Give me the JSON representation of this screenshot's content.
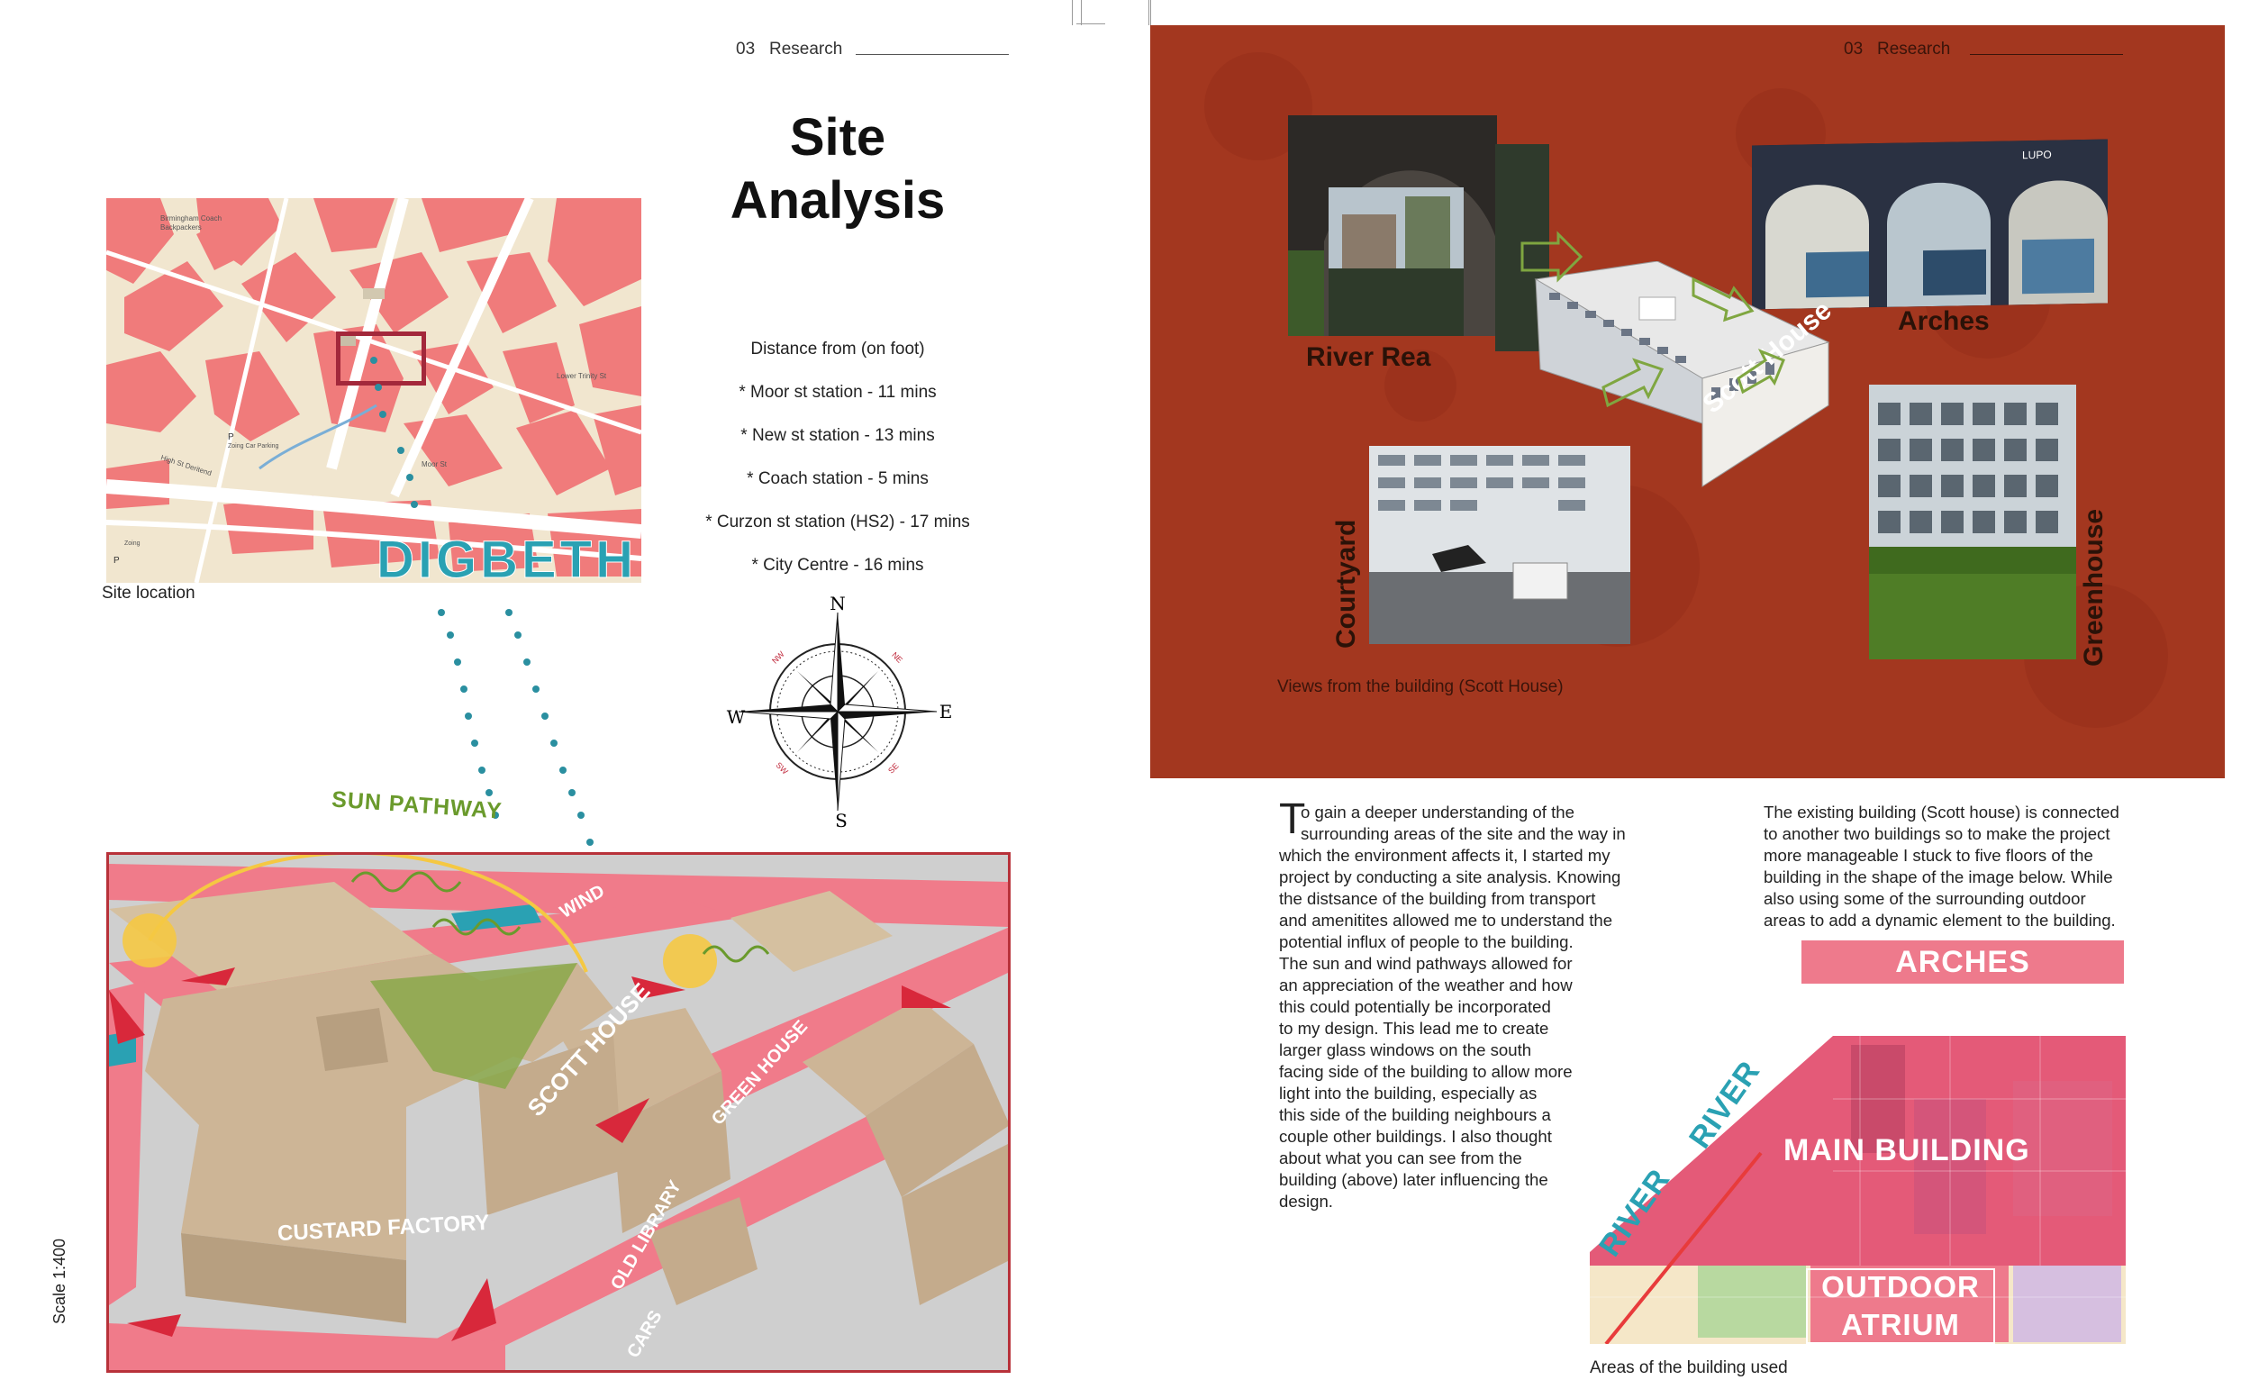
{
  "left_page": {
    "header": {
      "number": "03",
      "section": "Research"
    },
    "title_line1": "Site",
    "title_line2": "Analysis",
    "distance_heading": "Distance from (on foot)",
    "distances": [
      "* Moor st station - 11 mins",
      "* New st station - 13 mins",
      "* Coach station - 5 mins",
      "* Curzon st station (HS2) - 17 mins",
      "* City Centre - 16 mins"
    ],
    "map": {
      "district_label": "DIGBETH",
      "caption": "Site location",
      "small_labels": [
        "Birmingham Coach Backpackers",
        "Zoing Car Parking",
        "High St Deritend",
        "Moor St",
        "Lower Trinity St"
      ]
    },
    "compass": {
      "north": "N",
      "south": "S",
      "east": "E",
      "west": "W",
      "nw": "NW",
      "ne": "NE",
      "sw": "SW",
      "se": "SE"
    },
    "axo": {
      "sun_label": "SUN PATHWAY",
      "labels": [
        "WIND",
        "SCOTT HOUSE",
        "GREEN HOUSE",
        "CUSTARD FACTORY",
        "OLD LIBRARY",
        "CARS"
      ],
      "scale": "Scale 1:400"
    }
  },
  "right_page": {
    "header": {
      "number": "03",
      "section": "Research"
    },
    "photos": {
      "river": "River Rea",
      "arches": "Arches",
      "scott": "Scott House",
      "courtyard": "Courtyard",
      "greenhouse": "Greenhouse",
      "arches_sign": "LUPO"
    },
    "photos_caption": "Views from the building (Scott House)",
    "para1_dropcap": "T",
    "para1_first": "o gain a deeper understanding of the",
    "para1_lines": [
      "surrounding areas of the site and the way in",
      "which the  environment affects it, I started my",
      "project by conducting a site analysis. Knowing",
      "the distsance of the building from transport",
      "and amenitites allowed me to understand the",
      "potential influx of people to the building.",
      "The sun and wind pathways allowed for",
      "an appreciation of the weather and how",
      "this could potentially be incorporated",
      "to my design. This lead me to create",
      "larger glass windows on the south",
      "facing side of the building to allow more",
      "light into the building, especially as",
      "this side of the building neighbours a",
      "couple other buildings. I also thought",
      "about what you can see from the",
      "building (above) later influencing the",
      "design."
    ],
    "para2_lines": [
      "The existing building (Scott house) is connected",
      "to another two buildings so to make the project",
      "more manageable I stuck to five floors of the",
      "building in the shape of the image below. While",
      "also using some of the surrounding outdoor",
      "areas to add a dynamic element to the building."
    ],
    "plan": {
      "arches": "ARCHES",
      "main": "MAIN BUILDING",
      "outdoor1": "OUTDOOR",
      "outdoor2": "ATRIUM",
      "river1": "RIVER",
      "river2": "RIVER",
      "caption": "Areas of the building used"
    }
  },
  "colors": {
    "map_buildings": "#f07b7b",
    "map_ground": "#f1e6cf",
    "digbeth": "#2aa1b3",
    "terracotta": "#a3371f",
    "sun": "#f5c842",
    "sun_label": "#6a9a2c",
    "pink": "#ee7a8c",
    "teal_dots": "#2a8fa0"
  }
}
